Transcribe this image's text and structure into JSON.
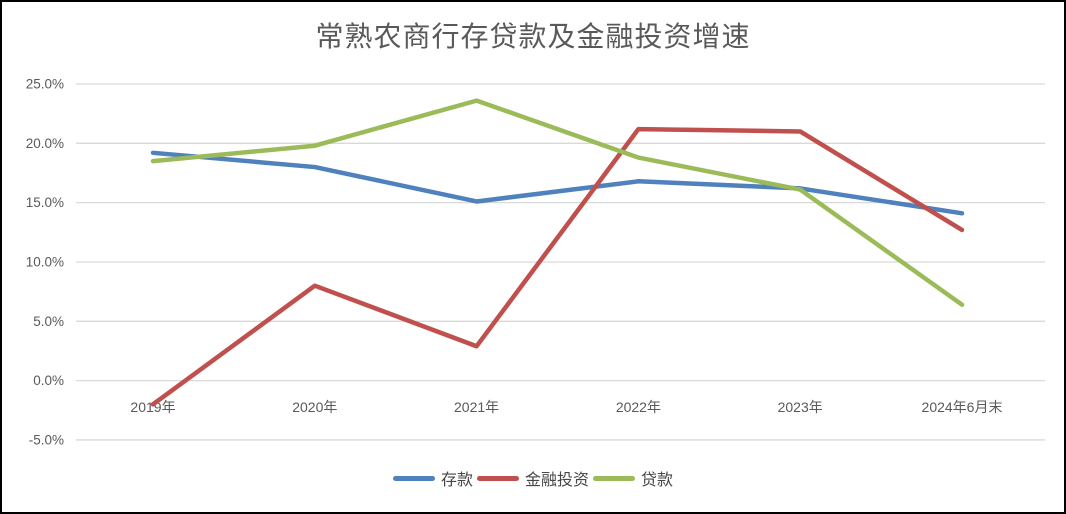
{
  "chart_data": {
    "type": "line",
    "title": "常熟农商行存贷款及金融投资增速",
    "categories": [
      "2019年",
      "2020年",
      "2021年",
      "2022年",
      "2023年",
      "2024年6月末"
    ],
    "series": [
      {
        "name": "存款",
        "color": "#4F81BD",
        "values": [
          19.2,
          18.0,
          15.1,
          16.8,
          16.2,
          14.1
        ]
      },
      {
        "name": "金融投资",
        "color": "#C0504D",
        "values": [
          -2.0,
          8.0,
          2.9,
          21.2,
          21.0,
          12.7
        ]
      },
      {
        "name": "贷款",
        "color": "#9BBB59",
        "values": [
          18.5,
          19.8,
          23.6,
          18.8,
          16.1,
          6.4
        ]
      }
    ],
    "xlabel": "",
    "ylabel": "",
    "ylim": [
      -5,
      25
    ],
    "ytick_step": 5,
    "ytick_labels": [
      "25.0%",
      "20.0%",
      "15.0%",
      "10.0%",
      "5.0%",
      "0.0%",
      "-5.0%"
    ],
    "grid": true,
    "legend_position": "bottom",
    "colors": {
      "gridline": "#D9D9D9",
      "axis_text": "#595959",
      "title_text": "#595959",
      "background": "#FFFFFF",
      "border": "#000000"
    }
  }
}
